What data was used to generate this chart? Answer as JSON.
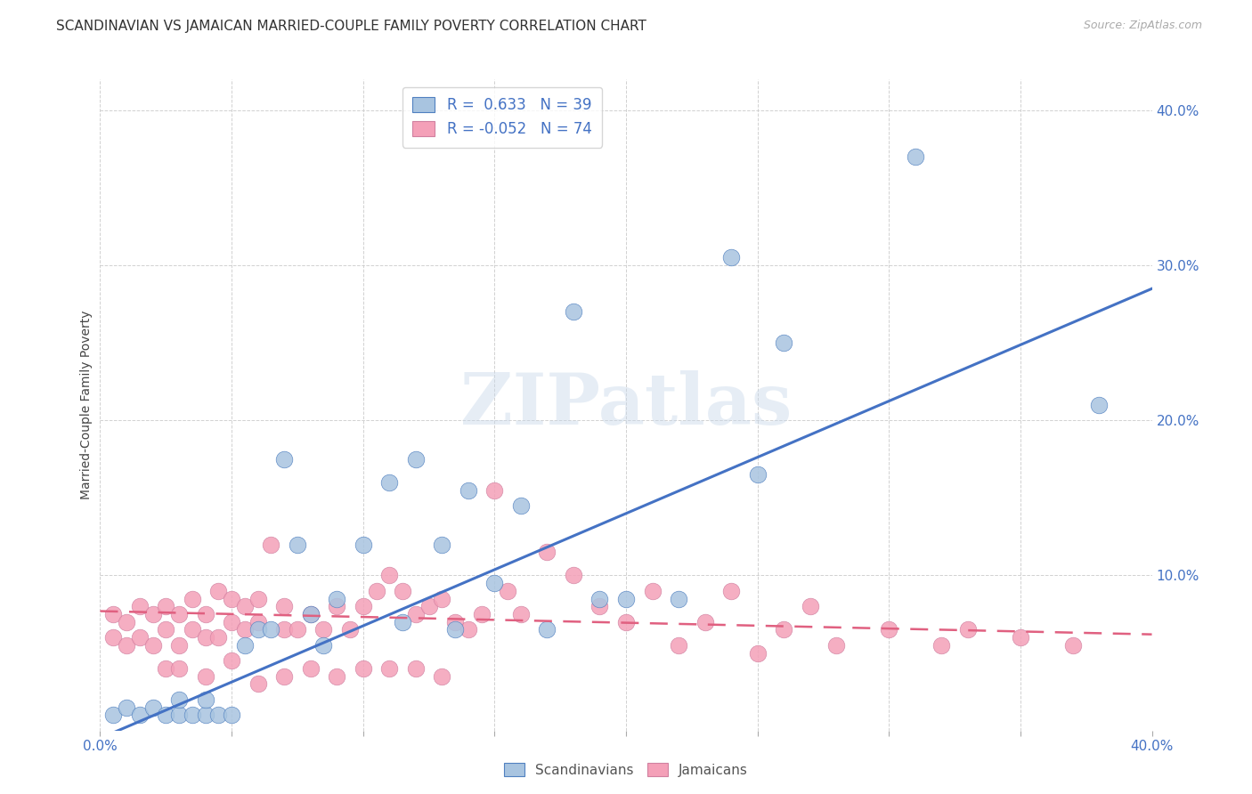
{
  "title": "SCANDINAVIAN VS JAMAICAN MARRIED-COUPLE FAMILY POVERTY CORRELATION CHART",
  "source": "Source: ZipAtlas.com",
  "ylabel": "Married-Couple Family Poverty",
  "xlim": [
    0.0,
    0.4
  ],
  "ylim": [
    0.0,
    0.42
  ],
  "watermark": "ZIPatlas",
  "scandinavian_color": "#a8c4e0",
  "jamaican_color": "#f4a0b8",
  "trend_blue": "#4472c4",
  "trend_pink": "#e06080",
  "scand_trend_x0": 0.0,
  "scand_trend_y0": -0.005,
  "scand_trend_x1": 0.4,
  "scand_trend_y1": 0.285,
  "jam_trend_x0": 0.0,
  "jam_trend_y0": 0.077,
  "jam_trend_x1": 0.4,
  "jam_trend_y1": 0.062,
  "scandinavians_x": [
    0.005,
    0.01,
    0.015,
    0.02,
    0.025,
    0.03,
    0.03,
    0.035,
    0.04,
    0.04,
    0.045,
    0.05,
    0.055,
    0.06,
    0.065,
    0.07,
    0.075,
    0.08,
    0.085,
    0.09,
    0.1,
    0.11,
    0.115,
    0.12,
    0.13,
    0.135,
    0.14,
    0.15,
    0.16,
    0.17,
    0.18,
    0.19,
    0.2,
    0.24,
    0.26,
    0.31,
    0.38,
    0.25,
    0.22
  ],
  "scandinavians_y": [
    0.01,
    0.015,
    0.01,
    0.015,
    0.01,
    0.01,
    0.02,
    0.01,
    0.01,
    0.02,
    0.01,
    0.01,
    0.055,
    0.065,
    0.065,
    0.175,
    0.12,
    0.075,
    0.055,
    0.085,
    0.12,
    0.16,
    0.07,
    0.175,
    0.12,
    0.065,
    0.155,
    0.095,
    0.145,
    0.065,
    0.27,
    0.085,
    0.085,
    0.305,
    0.25,
    0.37,
    0.21,
    0.165,
    0.085
  ],
  "jamaicans_x": [
    0.005,
    0.005,
    0.01,
    0.01,
    0.015,
    0.015,
    0.02,
    0.02,
    0.025,
    0.025,
    0.03,
    0.03,
    0.035,
    0.035,
    0.04,
    0.04,
    0.045,
    0.045,
    0.05,
    0.05,
    0.055,
    0.055,
    0.06,
    0.06,
    0.065,
    0.07,
    0.07,
    0.075,
    0.08,
    0.085,
    0.09,
    0.095,
    0.1,
    0.105,
    0.11,
    0.115,
    0.12,
    0.125,
    0.13,
    0.135,
    0.14,
    0.145,
    0.15,
    0.155,
    0.16,
    0.17,
    0.18,
    0.19,
    0.2,
    0.21,
    0.22,
    0.23,
    0.24,
    0.25,
    0.26,
    0.27,
    0.28,
    0.3,
    0.32,
    0.33,
    0.35,
    0.37,
    0.025,
    0.03,
    0.04,
    0.05,
    0.06,
    0.07,
    0.08,
    0.09,
    0.1,
    0.11,
    0.12,
    0.13
  ],
  "jamaicans_y": [
    0.075,
    0.06,
    0.07,
    0.055,
    0.08,
    0.06,
    0.075,
    0.055,
    0.08,
    0.065,
    0.075,
    0.055,
    0.085,
    0.065,
    0.075,
    0.06,
    0.09,
    0.06,
    0.085,
    0.07,
    0.08,
    0.065,
    0.085,
    0.07,
    0.12,
    0.065,
    0.08,
    0.065,
    0.075,
    0.065,
    0.08,
    0.065,
    0.08,
    0.09,
    0.1,
    0.09,
    0.075,
    0.08,
    0.085,
    0.07,
    0.065,
    0.075,
    0.155,
    0.09,
    0.075,
    0.115,
    0.1,
    0.08,
    0.07,
    0.09,
    0.055,
    0.07,
    0.09,
    0.05,
    0.065,
    0.08,
    0.055,
    0.065,
    0.055,
    0.065,
    0.06,
    0.055,
    0.04,
    0.04,
    0.035,
    0.045,
    0.03,
    0.035,
    0.04,
    0.035,
    0.04,
    0.04,
    0.04,
    0.035
  ]
}
